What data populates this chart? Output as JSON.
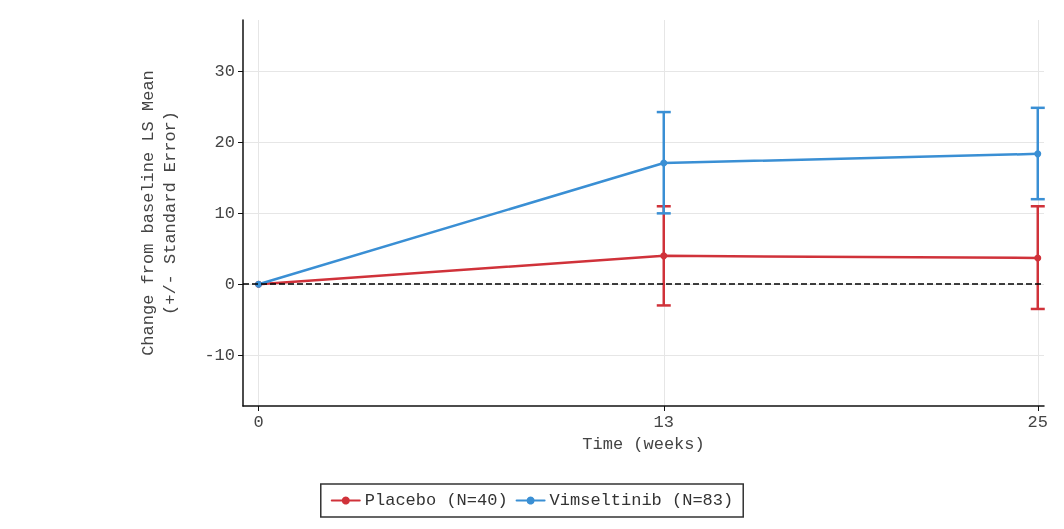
{
  "chart_data": {
    "type": "line",
    "xlabel": "Time (weeks)",
    "ylabel": "Change from baseline LS Mean\n(+/- Standard Error)",
    "xlim": [
      -0.5,
      25.2
    ],
    "xticks": [
      0,
      13,
      25
    ],
    "ylim": [
      -17.2,
      37.3
    ],
    "yticks": [
      -10,
      0,
      10,
      20,
      30
    ],
    "series": [
      {
        "name": "Placebo (N=40)",
        "color": "#d0323a",
        "x": [
          0,
          13,
          25
        ],
        "values": [
          0,
          4.0,
          3.7
        ],
        "errors": [
          null,
          [
            -3,
            11
          ],
          [
            -3.5,
            11
          ]
        ]
      },
      {
        "name": "Vimseltinib (N=83)",
        "color": "#3a8fd4",
        "x": [
          0,
          13,
          25
        ],
        "values": [
          0,
          17.1,
          18.4
        ],
        "errors": [
          null,
          [
            10,
            24.3
          ],
          [
            12,
            24.9
          ]
        ]
      }
    ],
    "ref_lines": [
      {
        "axis": "y",
        "value": 0,
        "color": "#000000",
        "line_style": "dashed"
      }
    ],
    "grid": true,
    "legend": "bottom",
    "marker": "circle",
    "line_style": "solid"
  }
}
